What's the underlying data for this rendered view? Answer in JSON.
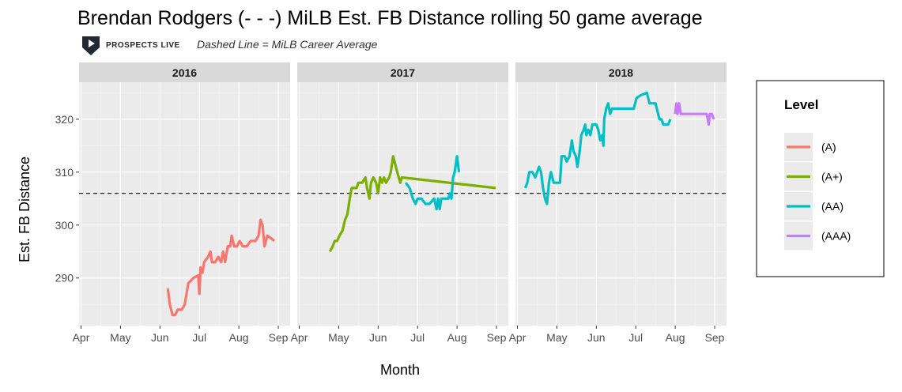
{
  "title": "Brendan Rodgers (- - -) MiLB Est. FB Distance rolling 50 game average",
  "logo_text": "PROSPECTS LIVE",
  "note": "Dashed Line = MiLB Career Average",
  "chart_data": {
    "type": "line",
    "xlabel": "Month",
    "ylabel": "Est. FB Distance",
    "ylim": [
      281,
      327
    ],
    "yticks": [
      290,
      300,
      310,
      320
    ],
    "xticks": [
      "Apr",
      "May",
      "Jun",
      "Jul",
      "Aug",
      "Sep"
    ],
    "xlim": [
      -0.05,
      5.3
    ],
    "career_average": 306,
    "grid": true,
    "legend_placement": "right",
    "legend_title": "Level",
    "levels": [
      {
        "name": "(A)",
        "color": "#F8766D"
      },
      {
        "name": "(A+)",
        "color": "#7CAE00"
      },
      {
        "name": "(AA)",
        "color": "#00BFC4"
      },
      {
        "name": "(AAA)",
        "color": "#C77CFF"
      }
    ],
    "panels": [
      {
        "label": "2016",
        "series": [
          {
            "level": "(A)",
            "points": [
              [
                2.2,
                288
              ],
              [
                2.25,
                285
              ],
              [
                2.32,
                283
              ],
              [
                2.38,
                283
              ],
              [
                2.45,
                284
              ],
              [
                2.55,
                284
              ],
              [
                2.63,
                285
              ],
              [
                2.72,
                289
              ],
              [
                2.85,
                290
              ],
              [
                2.97,
                290.5
              ],
              [
                3.0,
                287
              ],
              [
                3.03,
                292
              ],
              [
                3.08,
                291
              ],
              [
                3.12,
                293
              ],
              [
                3.22,
                294
              ],
              [
                3.28,
                295
              ],
              [
                3.32,
                293
              ],
              [
                3.4,
                293
              ],
              [
                3.48,
                294
              ],
              [
                3.55,
                293
              ],
              [
                3.6,
                295
              ],
              [
                3.65,
                293
              ],
              [
                3.72,
                296
              ],
              [
                3.78,
                296
              ],
              [
                3.82,
                298
              ],
              [
                3.88,
                296
              ],
              [
                3.95,
                296
              ],
              [
                4.02,
                297
              ],
              [
                4.1,
                296
              ],
              [
                4.2,
                296
              ],
              [
                4.3,
                297
              ],
              [
                4.42,
                297
              ],
              [
                4.5,
                298
              ],
              [
                4.55,
                301
              ],
              [
                4.6,
                300
              ],
              [
                4.65,
                296
              ],
              [
                4.72,
                298
              ],
              [
                4.82,
                297.5
              ],
              [
                4.9,
                297
              ]
            ]
          }
        ]
      },
      {
        "label": "2017",
        "series": [
          {
            "level": "(A+)",
            "points": [
              [
                0.78,
                295
              ],
              [
                0.85,
                296
              ],
              [
                0.9,
                297
              ],
              [
                0.96,
                297
              ],
              [
                1.02,
                298
              ],
              [
                1.1,
                299
              ],
              [
                1.16,
                301
              ],
              [
                1.22,
                302
              ],
              [
                1.28,
                305
              ],
              [
                1.33,
                307
              ],
              [
                1.45,
                307
              ],
              [
                1.5,
                308
              ],
              [
                1.6,
                308
              ],
              [
                1.68,
                309
              ],
              [
                1.72,
                307
              ],
              [
                1.78,
                305
              ],
              [
                1.82,
                308
              ],
              [
                1.88,
                309
              ],
              [
                1.95,
                308
              ],
              [
                2.0,
                306
              ],
              [
                2.05,
                309
              ],
              [
                2.1,
                308
              ],
              [
                2.15,
                309
              ],
              [
                2.2,
                308
              ],
              [
                2.28,
                309
              ],
              [
                2.32,
                310
              ],
              [
                2.38,
                313
              ],
              [
                2.45,
                311
              ],
              [
                2.52,
                309
              ],
              [
                2.56,
                308
              ],
              [
                2.6,
                309
              ],
              [
                4.98,
                307
              ]
            ]
          },
          {
            "level": "(AA)",
            "points": [
              [
                2.7,
                308
              ],
              [
                2.8,
                307
              ],
              [
                2.88,
                305
              ],
              [
                2.95,
                304
              ],
              [
                3.0,
                305
              ],
              [
                3.1,
                305
              ],
              [
                3.2,
                304
              ],
              [
                3.3,
                304
              ],
              [
                3.42,
                305
              ],
              [
                3.48,
                303
              ],
              [
                3.52,
                305
              ],
              [
                3.56,
                303
              ],
              [
                3.6,
                305
              ],
              [
                3.65,
                305
              ],
              [
                3.72,
                305
              ],
              [
                3.78,
                305
              ],
              [
                3.82,
                306
              ],
              [
                3.86,
                305
              ],
              [
                3.9,
                309
              ],
              [
                3.94,
                310
              ],
              [
                4.0,
                313
              ],
              [
                4.05,
                310
              ]
            ]
          }
        ]
      },
      {
        "label": "2018",
        "series": [
          {
            "level": "(AA)",
            "points": [
              [
                0.2,
                307
              ],
              [
                0.25,
                308
              ],
              [
                0.3,
                310
              ],
              [
                0.38,
                310
              ],
              [
                0.45,
                309
              ],
              [
                0.55,
                311
              ],
              [
                0.6,
                310
              ],
              [
                0.65,
                307
              ],
              [
                0.7,
                305
              ],
              [
                0.75,
                304
              ],
              [
                0.8,
                308
              ],
              [
                0.85,
                310
              ],
              [
                0.92,
                308
              ],
              [
                1.0,
                308
              ],
              [
                1.08,
                308
              ],
              [
                1.12,
                313
              ],
              [
                1.2,
                313
              ],
              [
                1.25,
                312
              ],
              [
                1.32,
                313
              ],
              [
                1.38,
                316
              ],
              [
                1.42,
                314
              ],
              [
                1.48,
                313
              ],
              [
                1.52,
                311
              ],
              [
                1.58,
                314
              ],
              [
                1.62,
                317
              ],
              [
                1.68,
                318
              ],
              [
                1.72,
                319
              ],
              [
                1.75,
                317
              ],
              [
                1.8,
                318
              ],
              [
                1.85,
                317
              ],
              [
                1.9,
                319
              ],
              [
                2.0,
                319
              ],
              [
                2.05,
                318
              ],
              [
                2.1,
                316
              ],
              [
                2.15,
                317
              ],
              [
                2.18,
                315
              ],
              [
                2.2,
                320
              ],
              [
                2.25,
                322
              ],
              [
                2.3,
                323
              ],
              [
                2.35,
                321
              ],
              [
                2.4,
                322
              ],
              [
                2.5,
                322
              ],
              [
                2.7,
                322
              ],
              [
                2.95,
                322
              ],
              [
                3.02,
                324
              ],
              [
                3.12,
                324.5
              ],
              [
                3.28,
                325
              ],
              [
                3.35,
                323
              ],
              [
                3.5,
                323
              ],
              [
                3.6,
                320
              ],
              [
                3.65,
                320
              ],
              [
                3.7,
                319
              ],
              [
                3.82,
                319
              ],
              [
                3.88,
                320
              ]
            ]
          },
          {
            "level": "(AAA)",
            "points": [
              [
                4.0,
                321
              ],
              [
                4.03,
                323
              ],
              [
                4.06,
                321
              ],
              [
                4.1,
                323
              ],
              [
                4.14,
                321
              ],
              [
                4.2,
                321
              ],
              [
                4.4,
                321
              ],
              [
                4.6,
                321
              ],
              [
                4.75,
                321
              ],
              [
                4.8,
                321
              ],
              [
                4.85,
                319
              ],
              [
                4.88,
                321
              ],
              [
                4.93,
                321
              ],
              [
                4.98,
                320
              ]
            ]
          }
        ]
      }
    ]
  }
}
